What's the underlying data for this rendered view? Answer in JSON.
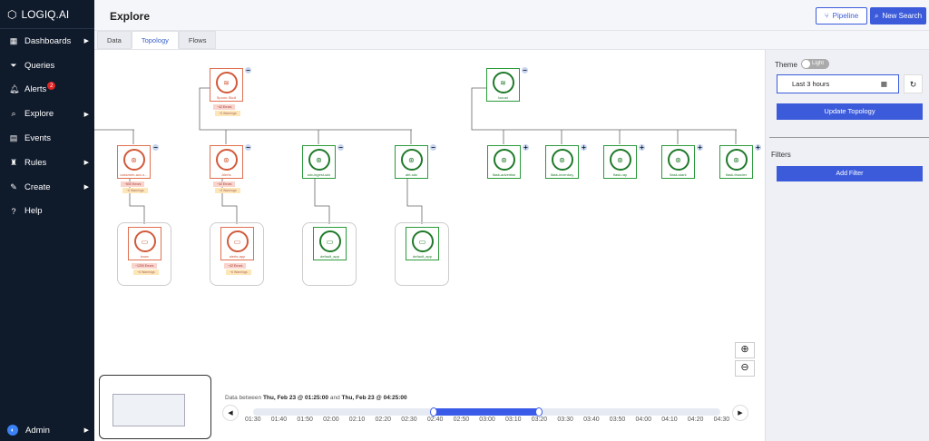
{
  "app": {
    "logo": "LOGIQ.AI"
  },
  "sidebar": {
    "items": [
      {
        "label": "Dashboards",
        "icon": "grid-icon",
        "arrow": true
      },
      {
        "label": "Queries",
        "icon": "filter-icon",
        "arrow": false
      },
      {
        "label": "Alerts",
        "icon": "bell-icon",
        "arrow": false,
        "badge": "2"
      },
      {
        "label": "Explore",
        "icon": "search-icon",
        "arrow": true
      },
      {
        "label": "Events",
        "icon": "calendar-icon",
        "arrow": false
      },
      {
        "label": "Rules",
        "icon": "rules-icon",
        "arrow": true
      },
      {
        "label": "Create",
        "icon": "edit-icon",
        "arrow": true
      },
      {
        "label": "Help",
        "icon": "help-icon",
        "arrow": false
      }
    ],
    "user": "Admin"
  },
  "header": {
    "title": "Explore",
    "pipeline": "Pipeline",
    "new_search": "New Search"
  },
  "tabs": [
    {
      "label": "Data"
    },
    {
      "label": "Topology",
      "active": true
    },
    {
      "label": "Flows"
    }
  ],
  "topology": {
    "roots": [
      {
        "name": "Spoon-Skull",
        "status": "error",
        "errors": "~42 Errors",
        "warnings": "~6 Warnings"
      },
      {
        "name": "locust",
        "status": "ok"
      }
    ],
    "services": [
      {
        "name": "cassmen-acc.o...",
        "status": "error",
        "errors": "~500 Errors",
        "warnings": "~6 Warnings"
      },
      {
        "name": "Alerts",
        "status": "error",
        "errors": "~42 Errors",
        "warnings": "~6 Warnings"
      },
      {
        "name": "sdx-ingest-sdx",
        "status": "ok"
      },
      {
        "name": "alrt-sdx",
        "status": "ok"
      },
      {
        "name": "flask-advertise",
        "status": "ok"
      },
      {
        "name": "flask-inventory",
        "status": "ok"
      },
      {
        "name": "flask-ray",
        "status": "ok"
      },
      {
        "name": "flask-stark",
        "status": "ok"
      },
      {
        "name": "flask-thunder",
        "status": "ok"
      }
    ],
    "apps": [
      {
        "name": "tcsec",
        "status": "error",
        "errors": "~1200 Errors",
        "warnings": "~6 Warnings"
      },
      {
        "name": "alerts-app",
        "status": "error",
        "errors": "~42 Errors",
        "warnings": "~6 Warnings"
      },
      {
        "name": "default_app",
        "status": "ok"
      },
      {
        "name": "default_app",
        "status": "ok"
      }
    ]
  },
  "timeline": {
    "prefix": "Data between",
    "start": "Thu, Feb 23 @ 01:25:00",
    "and": "and",
    "end": "Thu, Feb 23 @ 04:25:00",
    "ticks": [
      "01:30",
      "01:40",
      "01:50",
      "02:00",
      "02:10",
      "02:20",
      "02:30",
      "02:40",
      "02:50",
      "03:00",
      "03:10",
      "03:20",
      "03:30",
      "03:40",
      "03:50",
      "04:00",
      "04:10",
      "04:20",
      "04:30"
    ],
    "selected": [
      "02:40",
      "03:20"
    ]
  },
  "panel": {
    "theme_label": "Theme",
    "theme_value": "Light",
    "range": "Last 3 hours",
    "update": "Update Topology",
    "filters": "Filters",
    "add_filter": "Add Filter"
  },
  "colors": {
    "accent": "#3b5bdb",
    "error": "#e07050",
    "ok": "#2a9a3a",
    "sidebar": "#0f1a2b"
  }
}
